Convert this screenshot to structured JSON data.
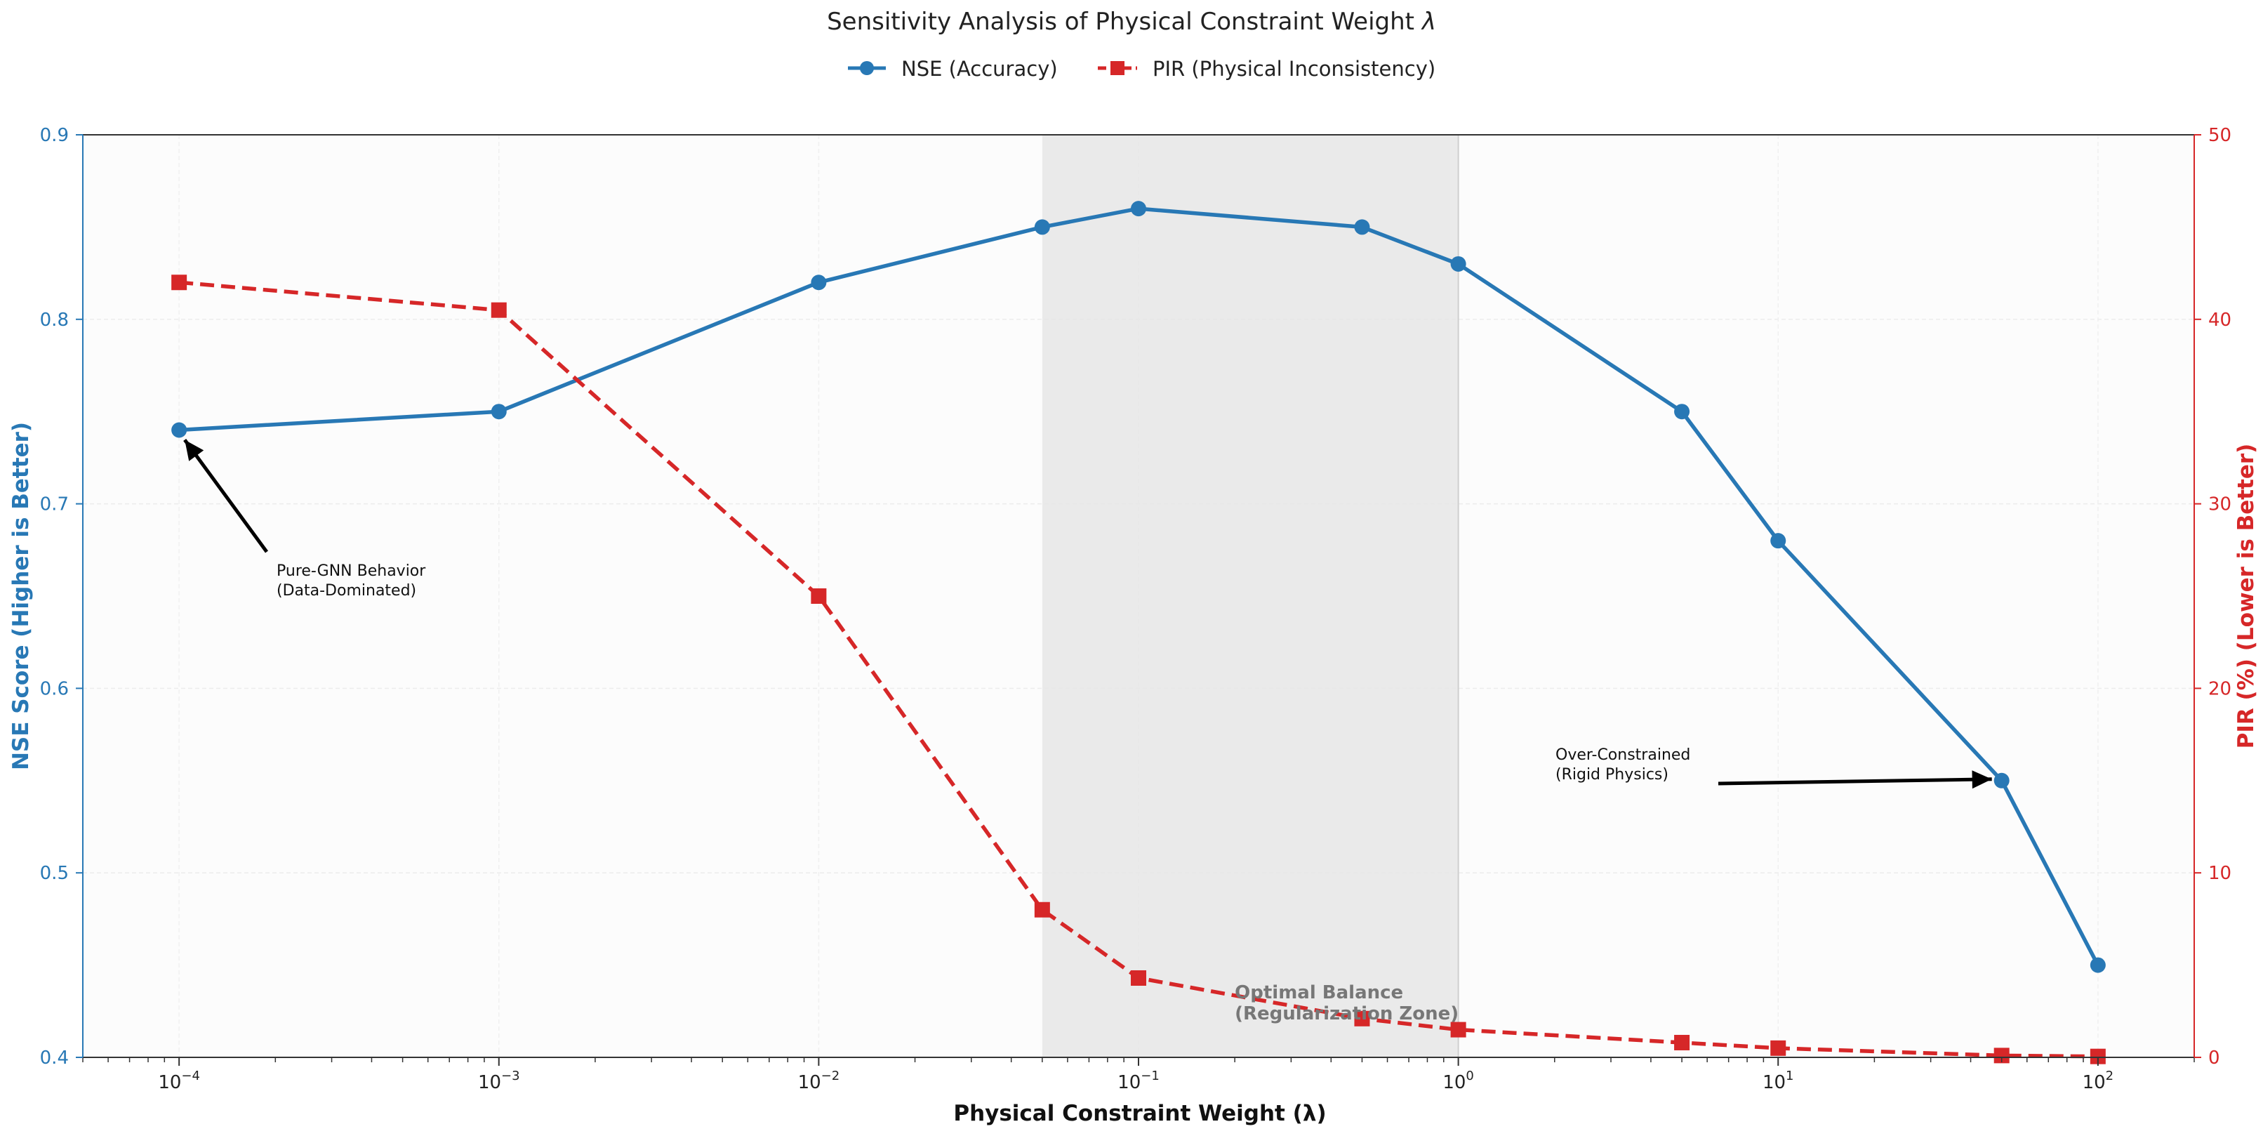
{
  "chart_data": {
    "type": "line",
    "title": "Sensitivity Analysis of Physical Constraint Weight",
    "title_symbol": "λ",
    "xlabel": "Physical Constraint Weight (λ)",
    "ylabel_left": "NSE Score (Higher is Better)",
    "ylabel_right": "PIR (%) (Lower is Better)",
    "x_scale": "log",
    "xlim": [
      5e-05,
      200
    ],
    "ylim_left": [
      0.4,
      0.9
    ],
    "ylim_right": [
      0,
      50
    ],
    "x_ticks": [
      {
        "base": "10",
        "exp": "−4",
        "value": 0.0001
      },
      {
        "base": "10",
        "exp": "−3",
        "value": 0.001
      },
      {
        "base": "10",
        "exp": "−2",
        "value": 0.01
      },
      {
        "base": "10",
        "exp": "−1",
        "value": 0.1
      },
      {
        "base": "10",
        "exp": "0",
        "value": 1
      },
      {
        "base": "10",
        "exp": "1",
        "value": 10
      },
      {
        "base": "10",
        "exp": "2",
        "value": 100
      }
    ],
    "y_left_ticks": [
      "0.4",
      "0.5",
      "0.6",
      "0.7",
      "0.8",
      "0.9"
    ],
    "y_right_ticks": [
      "0",
      "10",
      "20",
      "30",
      "40",
      "50"
    ],
    "grid": true,
    "legend_position": "top-center",
    "shaded_region": {
      "x_start": 0.05,
      "x_end": 1,
      "label_line1": "Optimal Balance",
      "label_line2": "(Regularization Zone)"
    },
    "series": [
      {
        "name": "NSE (Accuracy)",
        "axis": "left",
        "color": "#2878b5",
        "marker": "circle",
        "style": "solid",
        "x": [
          0.0001,
          0.001,
          0.01,
          0.05,
          0.1,
          0.5,
          1,
          5,
          10,
          50,
          100
        ],
        "y": [
          0.74,
          0.75,
          0.82,
          0.85,
          0.86,
          0.85,
          0.83,
          0.75,
          0.68,
          0.55,
          0.45
        ]
      },
      {
        "name": "PIR (Physical Inconsistency)",
        "axis": "right",
        "color": "#d62728",
        "marker": "square",
        "style": "dashed",
        "x": [
          0.0001,
          0.001,
          0.01,
          0.05,
          0.1,
          0.5,
          1,
          5,
          10,
          50,
          100
        ],
        "y": [
          42,
          40.5,
          25,
          8,
          4.3,
          2.1,
          1.5,
          0.8,
          0.5,
          0.1,
          0.05
        ]
      }
    ],
    "annotations": [
      {
        "line1": "Pure-GNN Behavior",
        "line2": "(Data-Dominated)",
        "target_x": 0.0001,
        "target_y": 0.74
      },
      {
        "line1": "Over-Constrained",
        "line2": "(Rigid Physics)",
        "target_x": 50,
        "target_y": 0.55
      }
    ]
  }
}
